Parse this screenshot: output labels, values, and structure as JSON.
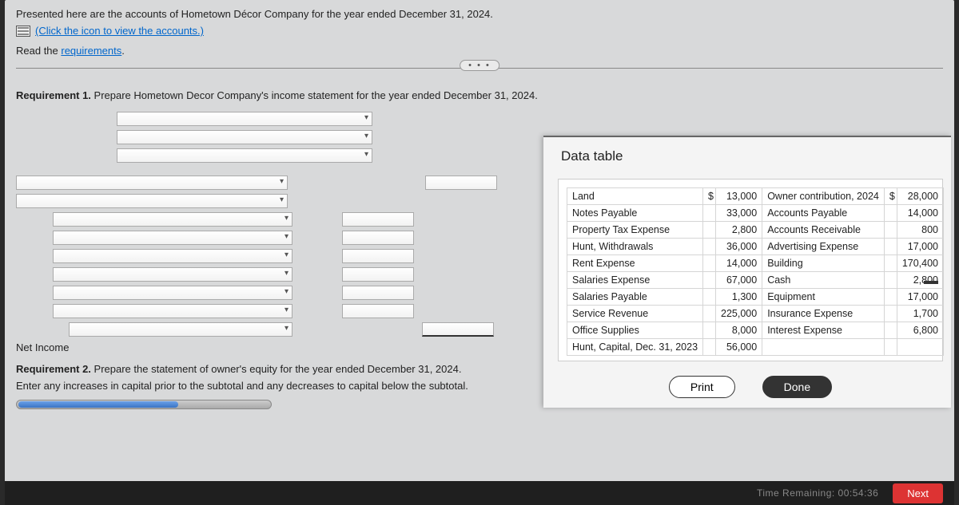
{
  "intro": {
    "line1": "Presented here are the accounts of Hometown Décor Company for the year ended December 31, 2024.",
    "accounts_link": "(Click the icon to view the accounts.)",
    "read_label": "Read the ",
    "requirements_link": "requirements"
  },
  "req1": {
    "bold": "Requirement 1.",
    "text": " Prepare Hometown Decor Company's income statement for the year ended December 31, 2024."
  },
  "net_income_label": "Net Income",
  "req2": {
    "bold": "Requirement 2.",
    "text1": " Prepare the statement of owner's equity for the year ended December 31, 2024.",
    "text2": "Enter any increases in capital prior to the subtotal and any decreases to capital below the subtotal."
  },
  "data_table": {
    "title": "Data table",
    "currency": "$",
    "rows": [
      {
        "l": "Land",
        "lv": "13,000",
        "r": "Owner contribution, 2024",
        "rv": "28,000",
        "lcur": "$",
        "rcur": "$"
      },
      {
        "l": "Notes Payable",
        "lv": "33,000",
        "r": "Accounts Payable",
        "rv": "14,000"
      },
      {
        "l": "Property Tax Expense",
        "lv": "2,800",
        "r": "Accounts Receivable",
        "rv": "800"
      },
      {
        "l": "Hunt, Withdrawals",
        "lv": "36,000",
        "r": "Advertising Expense",
        "rv": "17,000"
      },
      {
        "l": "Rent Expense",
        "lv": "14,000",
        "r": "Building",
        "rv": "170,400"
      },
      {
        "l": "Salaries Expense",
        "lv": "67,000",
        "r": "Cash",
        "rv": "2,800"
      },
      {
        "l": "Salaries Payable",
        "lv": "1,300",
        "r": "Equipment",
        "rv": "17,000"
      },
      {
        "l": "Service Revenue",
        "lv": "225,000",
        "r": "Insurance Expense",
        "rv": "1,700"
      },
      {
        "l": "Office Supplies",
        "lv": "8,000",
        "r": "Interest Expense",
        "rv": "6,800"
      },
      {
        "l": "Hunt, Capital, Dec. 31, 2023",
        "lv": "56,000",
        "r": "",
        "rv": ""
      }
    ],
    "print_label": "Print",
    "done_label": "Done"
  },
  "footer": {
    "time_label": "Time Remaining: 00:54:36",
    "next_label": "Next"
  },
  "ellipsis": "• • •"
}
